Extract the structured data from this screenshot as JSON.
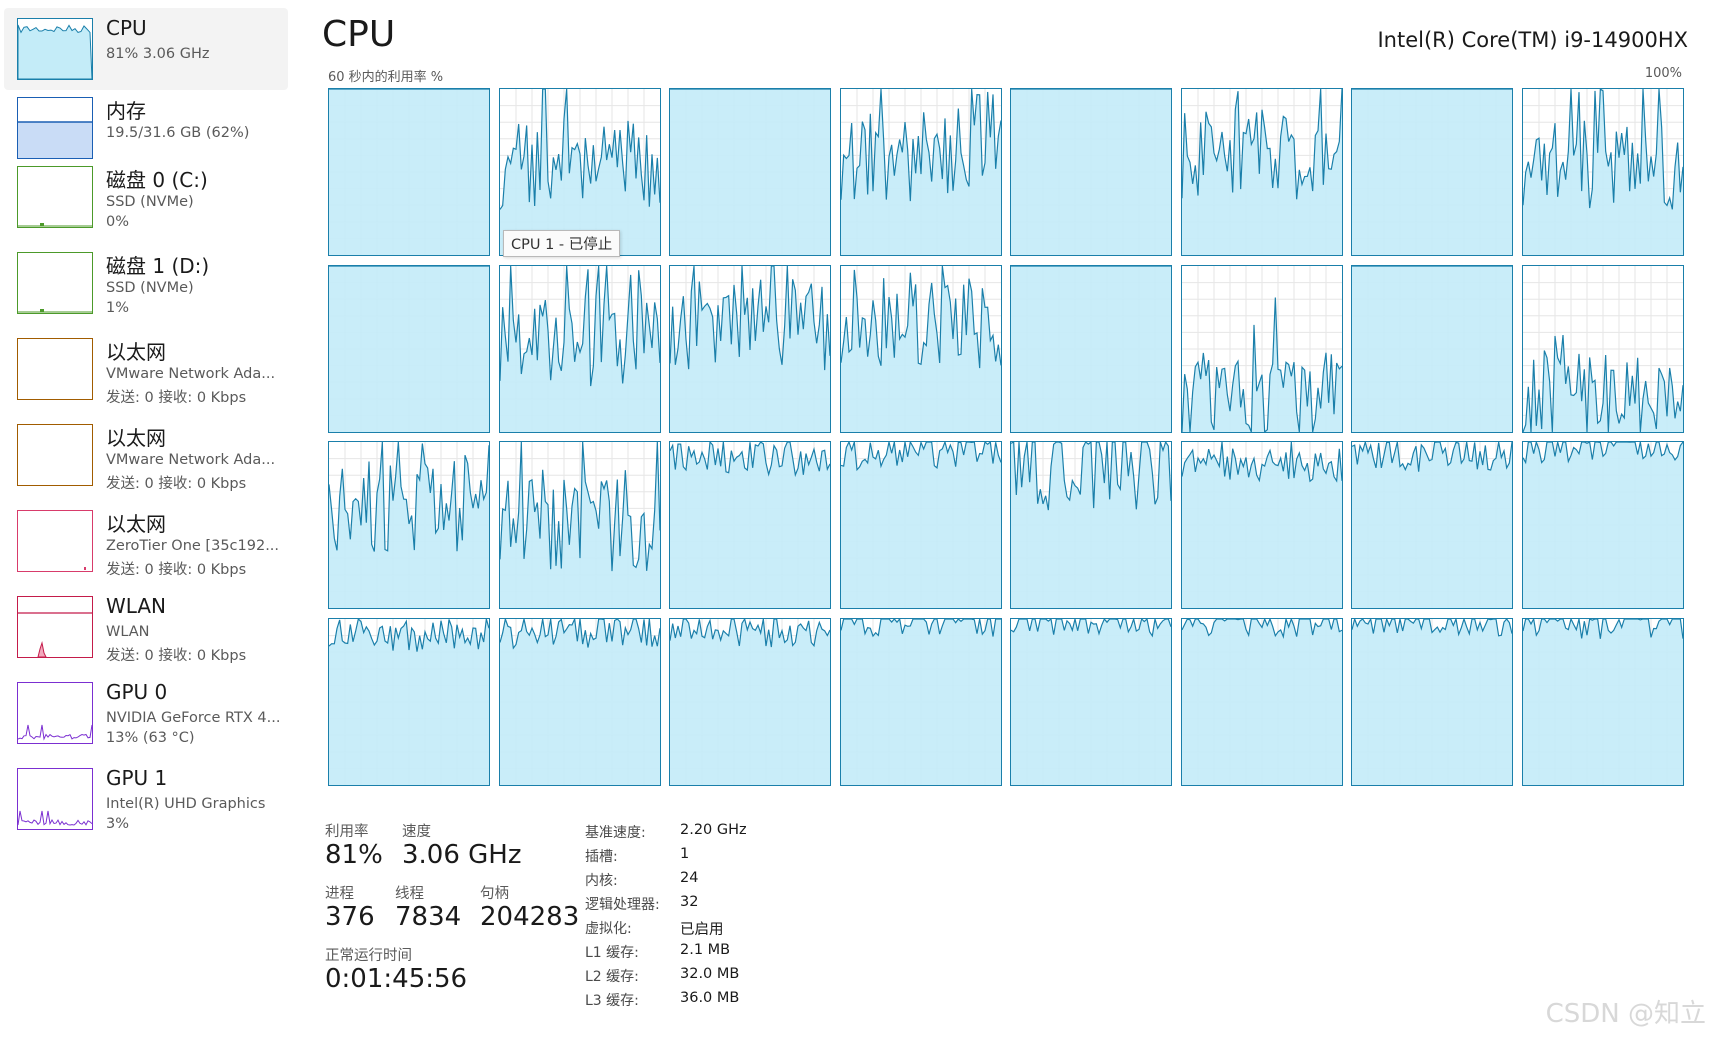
{
  "sidebar": {
    "items": [
      {
        "title": "CPU",
        "sub1": "81% 3.06 GHz",
        "sub2": "",
        "active": true,
        "thumb": "cpu-area",
        "color": "#1a7faa"
      },
      {
        "title": "内存",
        "sub1": "19.5/31.6 GB (62%)",
        "sub2": "",
        "active": false,
        "thumb": "memory-area",
        "color": "#1a5fb4"
      },
      {
        "title": "磁盘 0 (C:)",
        "sub1": "SSD (NVMe)",
        "sub2": "0%",
        "active": false,
        "thumb": "disk-flat",
        "color": "#4c9a2a"
      },
      {
        "title": "磁盘 1 (D:)",
        "sub1": "SSD (NVMe)",
        "sub2": "1%",
        "active": false,
        "thumb": "disk-flat",
        "color": "#4c9a2a"
      },
      {
        "title": "以太网",
        "sub1": "VMware Network Ada...",
        "sub2": "发送: 0 接收: 0 Kbps",
        "active": false,
        "thumb": "empty",
        "color": "#a15c00"
      },
      {
        "title": "以太网",
        "sub1": "VMware Network Ada...",
        "sub2": "发送: 0 接收: 0 Kbps",
        "active": false,
        "thumb": "empty",
        "color": "#a15c00"
      },
      {
        "title": "以太网",
        "sub1": "ZeroTier One [35c192...",
        "sub2": "发送: 0 接收: 0 Kbps",
        "active": false,
        "thumb": "empty-dot",
        "color": "#d83b6b"
      },
      {
        "title": "WLAN",
        "sub1": "WLAN",
        "sub2": "发送: 0 接收: 0 Kbps",
        "active": false,
        "thumb": "wlan",
        "color": "#c41b4a"
      },
      {
        "title": "GPU 0",
        "sub1": "NVIDIA GeForce RTX 4...",
        "sub2": "13% (63 °C)",
        "active": false,
        "thumb": "gpu",
        "color": "#7b2fd1"
      },
      {
        "title": "GPU 1",
        "sub1": "Intel(R) UHD Graphics",
        "sub2": "3%",
        "active": false,
        "thumb": "gpu",
        "color": "#7b2fd1"
      }
    ]
  },
  "header": {
    "title": "CPU",
    "processor": "Intel(R) Core(TM) i9-14900HX",
    "graph_caption": "60 秒内的利用率 %",
    "graph_max": "100%"
  },
  "tooltip": "CPU 1 - 已停止",
  "core_colors": {
    "line": "#1a7faa",
    "fill": "#c4ecf8",
    "grid": "#e6e6e6"
  },
  "core_levels": [
    [
      100,
      55,
      100,
      60,
      100,
      60,
      100,
      55
    ],
    [
      100,
      55,
      65,
      65,
      100,
      20,
      100,
      20
    ],
    [
      62,
      50,
      90,
      93,
      85,
      86,
      92,
      97
    ],
    [
      90,
      92,
      93,
      99,
      99,
      99,
      99,
      98
    ]
  ],
  "stats": {
    "utilization_label": "利用率",
    "utilization_value": "81%",
    "speed_label": "速度",
    "speed_value": "3.06 GHz",
    "processes_label": "进程",
    "processes_value": "376",
    "threads_label": "线程",
    "threads_value": "7834",
    "handles_label": "句柄",
    "handles_value": "204283",
    "uptime_label": "正常运行时间",
    "uptime_value": "0:01:45:56"
  },
  "specs": [
    {
      "key": "基准速度:",
      "value": "2.20 GHz"
    },
    {
      "key": "插槽:",
      "value": "1"
    },
    {
      "key": "内核:",
      "value": "24"
    },
    {
      "key": "逻辑处理器:",
      "value": "32"
    },
    {
      "key": "虚拟化:",
      "value": "已启用"
    },
    {
      "key": "L1 缓存:",
      "value": "2.1 MB"
    },
    {
      "key": "L2 缓存:",
      "value": "32.0 MB"
    },
    {
      "key": "L3 缓存:",
      "value": "36.0 MB"
    }
  ],
  "watermark": "CSDN @知立"
}
